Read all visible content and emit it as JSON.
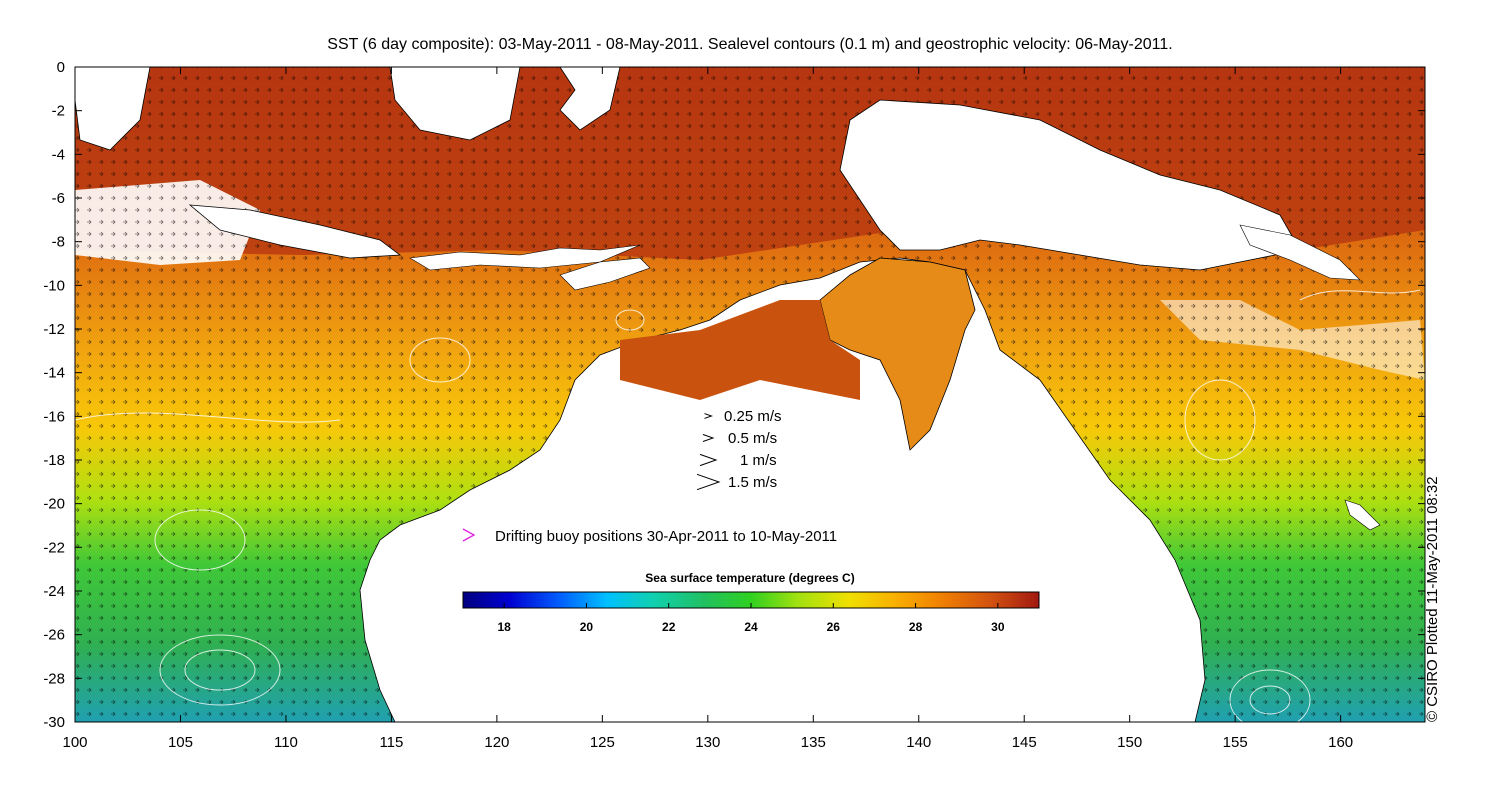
{
  "title": "SST (6 day composite): 03-May-2011 - 08-May-2011. Sealevel contours (0.1 m) and geostrophic velocity: 06-May-2011.",
  "x_ticks": [
    "100",
    "105",
    "110",
    "115",
    "120",
    "125",
    "130",
    "135",
    "140",
    "145",
    "150",
    "155",
    "160"
  ],
  "y_ticks": [
    "0",
    "-2",
    "-4",
    "-6",
    "-8",
    "-10",
    "-12",
    "-14",
    "-16",
    "-18",
    "-20",
    "-22",
    "-24",
    "-26",
    "-28",
    "-30"
  ],
  "velocity_legend": [
    {
      "label": "0.25 m/s",
      "speed": 0.25
    },
    {
      "label": "0.5 m/s",
      "speed": 0.5
    },
    {
      "label": "1 m/s",
      "speed": 1
    },
    {
      "label": "1.5 m/s",
      "speed": 1.5
    }
  ],
  "buoy_legend": {
    "label": "Drifting buoy positions 30-Apr-2011 to 10-May-2011",
    "color": "#e020e0"
  },
  "colorbar": {
    "title": "Sea surface temperature (degrees C)",
    "ticks": [
      "18",
      "20",
      "22",
      "24",
      "26",
      "28",
      "30"
    ],
    "range": [
      17,
      31
    ]
  },
  "credit": "© CSIRO Plotted 11-May-2011 08:32",
  "chart_data": {
    "type": "heatmap",
    "xlim": [
      100,
      164
    ],
    "ylim": [
      -30,
      0
    ],
    "xlabel": "",
    "ylabel": "",
    "grid": false,
    "colormap": [
      "#000080",
      "#0000d0",
      "#0060ff",
      "#00c0ff",
      "#10d0b0",
      "#20c060",
      "#30d020",
      "#a0e010",
      "#f0e000",
      "#f8b000",
      "#f08000",
      "#d05010",
      "#a01810"
    ],
    "sst_by_latitude_band": [
      {
        "lat": -10,
        "sst": 29.5
      },
      {
        "lat": -14,
        "sst": 28.5
      },
      {
        "lat": -18,
        "sst": 27.5
      },
      {
        "lat": -22,
        "sst": 25
      },
      {
        "lat": -26,
        "sst": 23.5
      },
      {
        "lat": -29,
        "sst": 22
      }
    ]
  }
}
